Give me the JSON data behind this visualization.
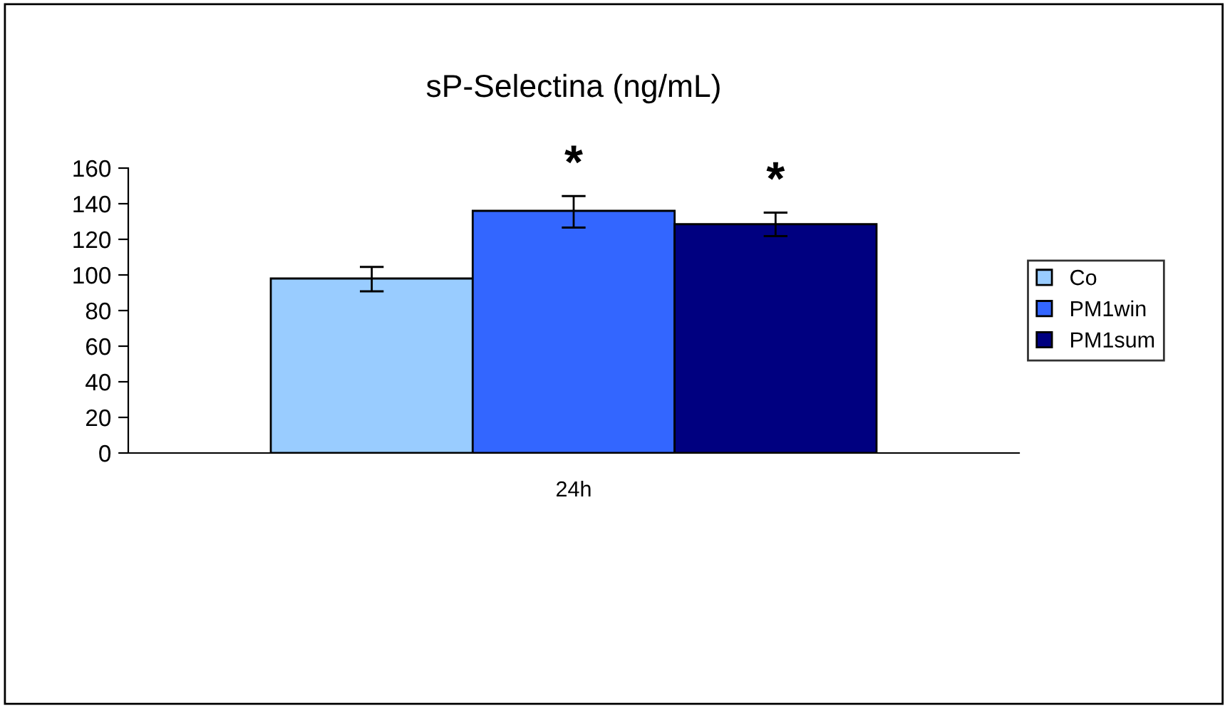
{
  "chart_data": {
    "type": "bar",
    "title": "sP-Selectina (ng/mL)",
    "categories": [
      "24h"
    ],
    "series": [
      {
        "name": "Co",
        "color": "#99ccff",
        "values": [
          98
        ],
        "errors": [
          [
            90.8,
            104.5
          ]
        ]
      },
      {
        "name": "PM1win",
        "color": "#3366ff",
        "values": [
          136
        ],
        "errors": [
          [
            126.6,
            144.3
          ]
        ]
      },
      {
        "name": "PM1sum",
        "color": "#000080",
        "values": [
          128.5
        ],
        "errors": [
          [
            121.8,
            135
          ]
        ]
      }
    ],
    "ylim": [
      0,
      160
    ],
    "yticks": [
      0,
      20,
      40,
      60,
      80,
      100,
      120,
      140,
      160
    ],
    "grid": false,
    "legend": "right",
    "annotations": [
      "*",
      "*"
    ]
  }
}
